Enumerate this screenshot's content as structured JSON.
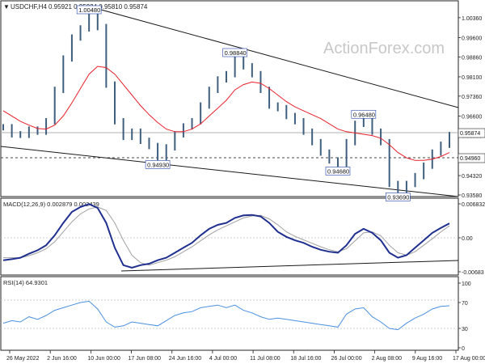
{
  "colors": {
    "background": "#ffffff",
    "bars": "#3f5f7f",
    "moving_average": "#e8202a",
    "macd_line": "#1f2f8f",
    "signal_line": "#a0a0a0",
    "rsi_line": "#4a90e2",
    "trendline": "#1a1a1a",
    "watermark": "#c8c8c8"
  },
  "header": {
    "symbol_info": "USDCHF,H4",
    "quote": "0.95921 0.95924 0.95810 0.95874"
  },
  "watermark": "ActionForex.com",
  "price_marker": "0.95874",
  "support_marker": "0.94960",
  "chart_data": [
    {
      "type": "line",
      "panel": "price",
      "yticks": [
        "1.00360",
        "0.99600",
        "0.98860",
        "0.98100",
        "0.97360",
        "0.96600",
        "0.95860",
        "0.95100",
        "0.94320",
        "0.93580"
      ],
      "ylim": [
        0.9358,
        1.0048
      ],
      "annotations": [
        {
          "label": "1.00480",
          "x": "15 Jun 2022",
          "y": 1.0048
        },
        {
          "label": "0.98840",
          "x": "14 Jul 2022",
          "y": 0.9884
        },
        {
          "label": "0.96480",
          "x": "3 Aug 2022",
          "y": 0.9648
        },
        {
          "label": "0.94930",
          "x": "22 Jun 2022",
          "y": 0.9493
        },
        {
          "label": "0.94680",
          "x": "1 Aug 2022",
          "y": 0.9468
        },
        {
          "label": "0.93690",
          "x": "10 Aug 2022",
          "y": 0.9369
        }
      ],
      "series": [
        {
          "values": [
            0.9617,
            0.959,
            0.9588,
            0.9608,
            0.96,
            0.964,
            0.976,
            0.988,
            0.996,
            0.9995,
            1.0048,
            1.0,
            0.978,
            0.964,
            0.958,
            0.96,
            0.9565,
            0.9545,
            0.9493,
            0.954,
            0.959,
            0.962,
            0.964,
            0.97,
            0.976,
            0.98,
            0.982,
            0.9884,
            0.985,
            0.982,
            0.976,
            0.97,
            0.969,
            0.966,
            0.964,
            0.96,
            0.956,
            0.952,
            0.949,
            0.9468,
            0.956,
            0.963,
            0.9648,
            0.96,
            0.956,
            0.94,
            0.9369,
            0.94,
            0.943,
            0.947,
            0.952,
            0.955,
            0.9587
          ]
        },
        {
          "values": [
            0.968,
            0.966,
            0.964,
            0.9625,
            0.9612,
            0.961,
            0.9625,
            0.966,
            0.971,
            0.9765,
            0.982,
            0.985,
            0.9845,
            0.982,
            0.978,
            0.974,
            0.97,
            0.9665,
            0.9635,
            0.961,
            0.96,
            0.96,
            0.961,
            0.963,
            0.966,
            0.969,
            0.972,
            0.976,
            0.978,
            0.979,
            0.9785,
            0.9765,
            0.974,
            0.9715,
            0.9695,
            0.968,
            0.9665,
            0.965,
            0.963,
            0.961,
            0.96,
            0.9595,
            0.959,
            0.9585,
            0.9575,
            0.955,
            0.952,
            0.95,
            0.949,
            0.949,
            0.9495,
            0.9505,
            0.952
          ]
        }
      ]
    },
    {
      "type": "line",
      "panel": "macd",
      "title": "MACD(12,26,9) 0.002879 0.002439",
      "yticks": [
        "0.006832",
        "0.00",
        "-0.00683"
      ],
      "ylim": [
        -0.00683,
        0.006832
      ],
      "series": [
        {
          "values": [
            -0.0045,
            -0.0043,
            -0.004,
            -0.0032,
            -0.0025,
            -0.0015,
            0.0005,
            0.003,
            0.0052,
            0.0062,
            0.0068,
            0.006,
            0.003,
            -0.002,
            -0.0055,
            -0.006,
            -0.0055,
            -0.0052,
            -0.0045,
            -0.004,
            -0.003,
            -0.002,
            -0.001,
            0.0005,
            0.0018,
            0.0026,
            0.003,
            0.004,
            0.0045,
            0.0046,
            0.0043,
            0.003,
            0.0012,
            0.0002,
            -0.0005,
            -0.001,
            -0.0018,
            -0.0024,
            -0.0028,
            -0.003,
            -0.0015,
            0.0008,
            0.0018,
            0.001,
            -0.0005,
            -0.003,
            -0.004,
            -0.0035,
            -0.002,
            -0.0005,
            0.001,
            0.002,
            0.0029
          ]
        },
        {
          "values": [
            -0.004,
            -0.004,
            -0.004,
            -0.0036,
            -0.003,
            -0.0022,
            -0.0008,
            0.0012,
            0.0032,
            0.0048,
            0.0058,
            0.0062,
            0.0055,
            0.003,
            -0.0005,
            -0.0035,
            -0.005,
            -0.0055,
            -0.005,
            -0.0045,
            -0.0038,
            -0.0028,
            -0.0018,
            -0.0006,
            0.0006,
            0.0016,
            0.0024,
            0.0032,
            0.004,
            0.0044,
            0.0045,
            0.0038,
            0.0026,
            0.0012,
            0.0003,
            -0.0004,
            -0.0011,
            -0.0018,
            -0.0024,
            -0.0028,
            -0.0022,
            -0.0006,
            0.001,
            0.0012,
            0.0004,
            -0.0015,
            -0.003,
            -0.0035,
            -0.0028,
            -0.0015,
            -0.0002,
            0.0012,
            0.0024
          ]
        }
      ]
    },
    {
      "type": "line",
      "panel": "rsi",
      "title": "RSI(14) 64.9301",
      "yticks": [
        "100",
        "70",
        "30",
        "0"
      ],
      "ylim": [
        0,
        100
      ],
      "series": [
        {
          "values": [
            38,
            42,
            40,
            48,
            44,
            50,
            58,
            62,
            66,
            70,
            72,
            60,
            40,
            32,
            34,
            40,
            38,
            36,
            34,
            42,
            50,
            54,
            56,
            62,
            64,
            66,
            62,
            66,
            58,
            54,
            48,
            44,
            46,
            44,
            42,
            40,
            38,
            36,
            34,
            32,
            52,
            60,
            62,
            48,
            40,
            30,
            28,
            38,
            46,
            52,
            60,
            64,
            65
          ]
        }
      ]
    }
  ],
  "x_axis": {
    "labels": [
      "26 May 2022",
      "2 Jun 16:00",
      "10 Jun 00:00",
      "17 Jun 08:00",
      "24 Jun 16:00",
      "4 Jul 00:00",
      "11 Jul 08:00",
      "18 Jul 16:00",
      "26 Jul 00:00",
      "2 Aug 08:00",
      "9 Aug 16:00",
      "17 Aug 00:00"
    ]
  }
}
